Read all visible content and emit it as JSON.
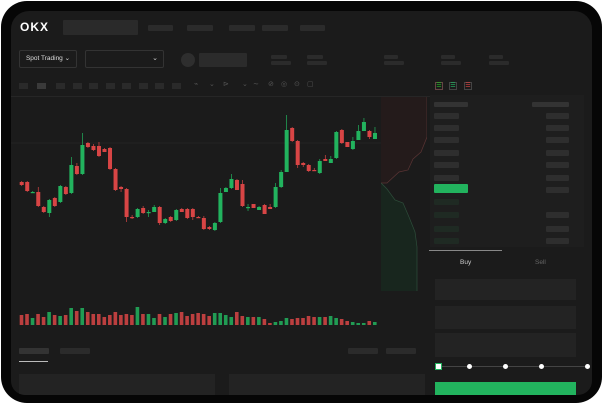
{
  "header": {
    "logo": "OKX"
  },
  "toolbar": {
    "market_type": "Spot Trading",
    "market_type_chevron": "⌄",
    "pair_chevron": "⌄"
  },
  "trade": {
    "buy_tab": "Buy",
    "sell_tab": "Sell",
    "active_tab": "Buy",
    "amount_slider_percent": 0
  },
  "colors": {
    "up": "#22b35e",
    "down": "#d84545",
    "background": "#1b1b1b"
  },
  "chart_data": {
    "type": "candlestick",
    "ohlc": [
      [
        118,
        119,
        114,
        115
      ],
      [
        118,
        119,
        108,
        109
      ],
      [
        107,
        109,
        107,
        108
      ],
      [
        108,
        113,
        93,
        94
      ],
      [
        93,
        94,
        87,
        88
      ],
      [
        87,
        101,
        83,
        100
      ],
      [
        102,
        103,
        93,
        94
      ],
      [
        98,
        115,
        97,
        114
      ],
      [
        113,
        114,
        105,
        106
      ],
      [
        107,
        143,
        106,
        135
      ],
      [
        134,
        137,
        125,
        126
      ],
      [
        126,
        167,
        125,
        155
      ],
      [
        157,
        158,
        152,
        153
      ],
      [
        154,
        156,
        149,
        150
      ],
      [
        154,
        158,
        143,
        144
      ],
      [
        151,
        152,
        148,
        148
      ],
      [
        152,
        153,
        130,
        131
      ],
      [
        131,
        132,
        109,
        110
      ],
      [
        113,
        114,
        108,
        111
      ],
      [
        111,
        112,
        78,
        83
      ],
      [
        83,
        85,
        81,
        82
      ],
      [
        83,
        92,
        82,
        91
      ],
      [
        92,
        94,
        86,
        87
      ],
      [
        87,
        90,
        83,
        88
      ],
      [
        88,
        95,
        88,
        93
      ],
      [
        93,
        94,
        75,
        77
      ],
      [
        77,
        82,
        76,
        81
      ],
      [
        83,
        84,
        78,
        79
      ],
      [
        80,
        91,
        79,
        90
      ],
      [
        91,
        92,
        88,
        88
      ],
      [
        91,
        92,
        81,
        82
      ],
      [
        91,
        92,
        80,
        83
      ],
      [
        83,
        84,
        82,
        82
      ],
      [
        82,
        84,
        70,
        71
      ],
      [
        73,
        74,
        70,
        71
      ],
      [
        70,
        78,
        69,
        77
      ],
      [
        78,
        112,
        77,
        107
      ],
      [
        108,
        113,
        108,
        112
      ],
      [
        112,
        126,
        111,
        121
      ],
      [
        120,
        121,
        110,
        110
      ],
      [
        116,
        120,
        93,
        94
      ],
      [
        92,
        96,
        89,
        93
      ],
      [
        96,
        96,
        92,
        92
      ],
      [
        90,
        94,
        90,
        93
      ],
      [
        95,
        96,
        86,
        86
      ],
      [
        93,
        96,
        91,
        91
      ],
      [
        93,
        117,
        92,
        113
      ],
      [
        113,
        130,
        112,
        128
      ],
      [
        128,
        185,
        128,
        170
      ],
      [
        172,
        173,
        158,
        159
      ],
      [
        159,
        160,
        132,
        135
      ],
      [
        137,
        138,
        133,
        135
      ],
      [
        135,
        136,
        128,
        129
      ],
      [
        130,
        132,
        129,
        129
      ],
      [
        127,
        141,
        126,
        139
      ],
      [
        141,
        145,
        139,
        139
      ],
      [
        137,
        144,
        137,
        141
      ],
      [
        142,
        169,
        141,
        168
      ],
      [
        170,
        171,
        156,
        157
      ],
      [
        158,
        158,
        153,
        153
      ],
      [
        151,
        163,
        150,
        159
      ],
      [
        160,
        175,
        160,
        169
      ],
      [
        169,
        182,
        169,
        178
      ],
      [
        169,
        170,
        161,
        163
      ],
      [
        161,
        173,
        161,
        167
      ]
    ],
    "volume": [
      10,
      11,
      7,
      11,
      8,
      13,
      10,
      9,
      10,
      17,
      14,
      17,
      13,
      11,
      11,
      8,
      10,
      13,
      10,
      11,
      10,
      18,
      11,
      11,
      7,
      11,
      8,
      11,
      12,
      13,
      9,
      11,
      12,
      11,
      9,
      12,
      12,
      10,
      8,
      13,
      9,
      8,
      8,
      8,
      6,
      2,
      3,
      4,
      7,
      6,
      7,
      7,
      9,
      8,
      8,
      8,
      9,
      7,
      6,
      4,
      3,
      2,
      2,
      4,
      3
    ]
  }
}
